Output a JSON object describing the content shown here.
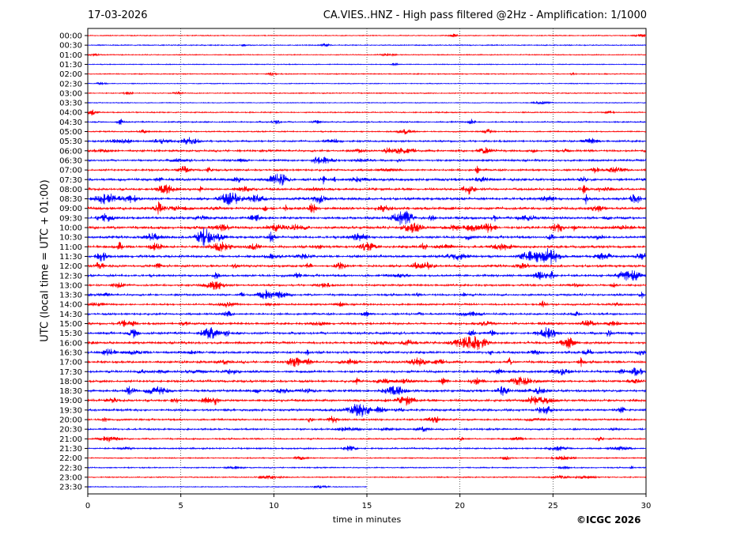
{
  "header": {
    "date": "17-03-2026",
    "title": "CA.VIES..HNZ - High pass filtered @2Hz - Amplification: 1/1000"
  },
  "footer": {
    "copyright": "©ICGC 2026"
  },
  "chart_data": {
    "type": "line",
    "title": "CA.VIES..HNZ - High pass filtered @2Hz - Amplification: 1/1000",
    "xlabel": "time in minutes",
    "ylabel": "UTC (local time = UTC + 01:00)",
    "xlim": [
      0,
      30
    ],
    "xticks": [
      0,
      5,
      10,
      15,
      20,
      25,
      30
    ],
    "vertical_gridlines": [
      5,
      10,
      15,
      20,
      25
    ],
    "rows": [
      "00:00",
      "00:30",
      "01:00",
      "01:30",
      "02:00",
      "02:30",
      "03:00",
      "03:30",
      "04:00",
      "04:30",
      "05:00",
      "05:30",
      "06:00",
      "06:30",
      "07:00",
      "07:30",
      "08:00",
      "08:30",
      "09:00",
      "09:30",
      "10:00",
      "10:30",
      "11:00",
      "11:30",
      "12:00",
      "12:30",
      "13:00",
      "13:30",
      "14:00",
      "14:30",
      "15:00",
      "15:30",
      "16:00",
      "16:30",
      "17:00",
      "17:30",
      "18:00",
      "18:30",
      "19:00",
      "19:30",
      "20:00",
      "20:30",
      "21:00",
      "21:30",
      "22:00",
      "22:30",
      "23:00",
      "23:30"
    ],
    "row_colors": [
      "#ff0000",
      "#0000ff"
    ],
    "activity": [
      0.15,
      0.2,
      0.15,
      0.12,
      0.2,
      0.12,
      0.2,
      0.1,
      0.25,
      0.35,
      0.3,
      0.55,
      0.65,
      0.6,
      0.6,
      0.9,
      0.8,
      0.95,
      0.95,
      0.85,
      1.0,
      0.85,
      0.85,
      0.9,
      0.8,
      0.75,
      0.6,
      0.65,
      0.55,
      0.6,
      0.7,
      0.85,
      0.75,
      0.8,
      0.8,
      0.8,
      0.75,
      0.85,
      0.8,
      0.75,
      0.55,
      0.5,
      0.4,
      0.4,
      0.25,
      0.25,
      0.25,
      0.1
    ],
    "trace_end_minutes": 15
  }
}
